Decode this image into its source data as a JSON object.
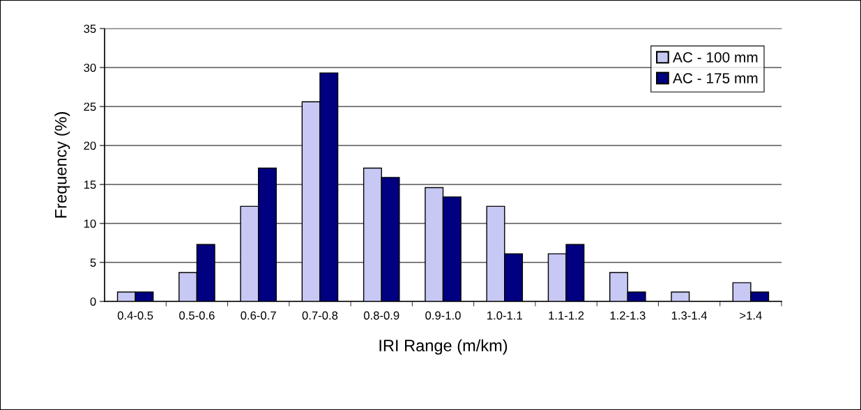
{
  "chart_data": {
    "type": "bar",
    "xlabel": "IRI Range (m/km)",
    "ylabel": "Frequency (%)",
    "categories": [
      "0.4-0.5",
      "0.5-0.6",
      "0.6-0.7",
      "0.7-0.8",
      "0.8-0.9",
      "0.9-1.0",
      "1.0-1.1",
      "1.1-1.2",
      "1.2-1.3",
      "1.3-1.4",
      ">1.4"
    ],
    "series": [
      {
        "name": "AC - 100 mm",
        "color": "#c8c8f4",
        "values": [
          1.2,
          3.7,
          12.2,
          25.6,
          17.1,
          14.6,
          12.2,
          6.1,
          3.7,
          1.2,
          2.4
        ]
      },
      {
        "name": "AC - 175 mm",
        "color": "#000080",
        "values": [
          1.2,
          7.3,
          17.1,
          29.3,
          15.9,
          13.4,
          6.1,
          7.3,
          1.2,
          0,
          1.2
        ]
      }
    ],
    "ylim": [
      0,
      35
    ],
    "yticks": [
      0,
      5,
      10,
      15,
      20,
      25,
      30,
      35
    ],
    "grid": "y",
    "legend": "top right"
  }
}
